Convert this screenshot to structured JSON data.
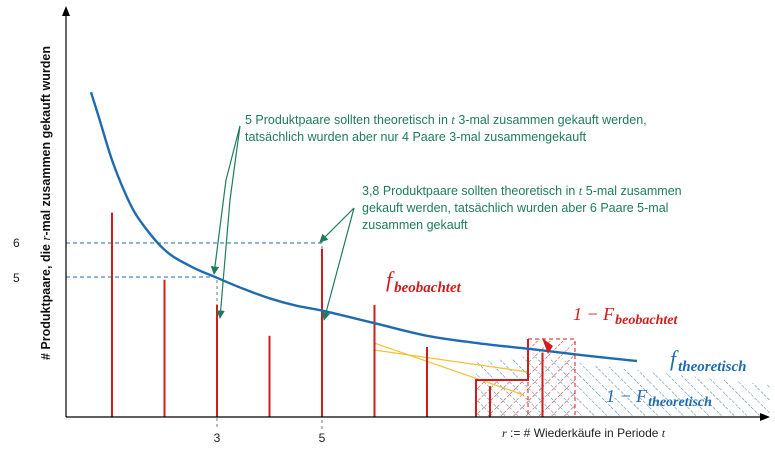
{
  "chart_data": {
    "type": "bar",
    "title": "",
    "xlabel_prefix": "r",
    "xlabel_middle": " := # Wiederkäufe in Periode ",
    "xlabel_suffix": "t",
    "ylabel_start": "# Produktpaare, die ",
    "ylabel_var": "r",
    "ylabel_end": "-mal zusammen gekauft wurden",
    "x_ticks": [
      {
        "x": 3,
        "label": "3"
      },
      {
        "x": 5,
        "label": "5"
      }
    ],
    "y_ticks": [
      {
        "y": 6,
        "label": "6"
      },
      {
        "y": 5,
        "label": "5"
      }
    ],
    "xlim": [
      0,
      11.5
    ],
    "ylim": [
      0,
      11.5
    ],
    "series": [
      {
        "name": "f_beobachtet",
        "style": "bars",
        "color": "#d01c1c",
        "points": [
          {
            "x": 1,
            "y": 7.3
          },
          {
            "x": 2,
            "y": 4.9
          },
          {
            "x": 3,
            "y": 4.0
          },
          {
            "x": 4,
            "y": 2.9
          },
          {
            "x": 5,
            "y": 6.0
          },
          {
            "x": 6,
            "y": 4.0
          },
          {
            "x": 7,
            "y": 2.5
          },
          {
            "x": 8.2,
            "y": 1.1
          },
          {
            "x": 9.2,
            "y": 2.3
          }
        ]
      },
      {
        "name": "f_theoretisch",
        "style": "curve",
        "color": "#1f6bb0",
        "x": [
          0.6,
          0.75,
          1.0,
          1.25,
          1.5,
          2.0,
          2.5,
          3.0,
          3.5,
          4.0,
          4.5,
          5.0,
          6.0,
          7.0,
          8.0,
          9.0,
          10.0,
          11.0
        ],
        "values": [
          11.6,
          10.7,
          9.18,
          8.0,
          7.1,
          5.97,
          5.38,
          4.97,
          4.58,
          4.24,
          3.98,
          3.8,
          3.35,
          2.9,
          2.63,
          2.42,
          2.2,
          2.0
        ]
      }
    ],
    "legend": {
      "f_beob_base": "f",
      "f_beob_sub": "beobachtet",
      "F_beob_prefix": "1 − F",
      "F_beob_sub": "beobachtet",
      "f_theo_base": "f",
      "f_theo_sub": "theoretisch",
      "F_theo_prefix": "1 − F",
      "F_theo_sub": "theoretisch"
    },
    "annotations": [
      {
        "line1_a": "5 Produktpaare sollten theoretisch in ",
        "line1_var": "t",
        "line1_b": " 3-mal zusammen gekauft werden,",
        "line2": "tatsächlich wurden aber nur 4 Paare 3-mal zusammengekauft"
      },
      {
        "line1_a": "3,8 Produktpaare sollten theoretisch in ",
        "line1_var": "t",
        "line1_b": " 5-mal zusammen",
        "line2": "gekauft werden, tatsächlich wurden aber 6 Paare 5-mal",
        "line3": "zusammen gekauft"
      }
    ],
    "colors": {
      "observed": "#d01c1c",
      "theoretical": "#1f6bb0",
      "annotation": "#1e7c5a",
      "highlight": "#f2c033"
    }
  }
}
